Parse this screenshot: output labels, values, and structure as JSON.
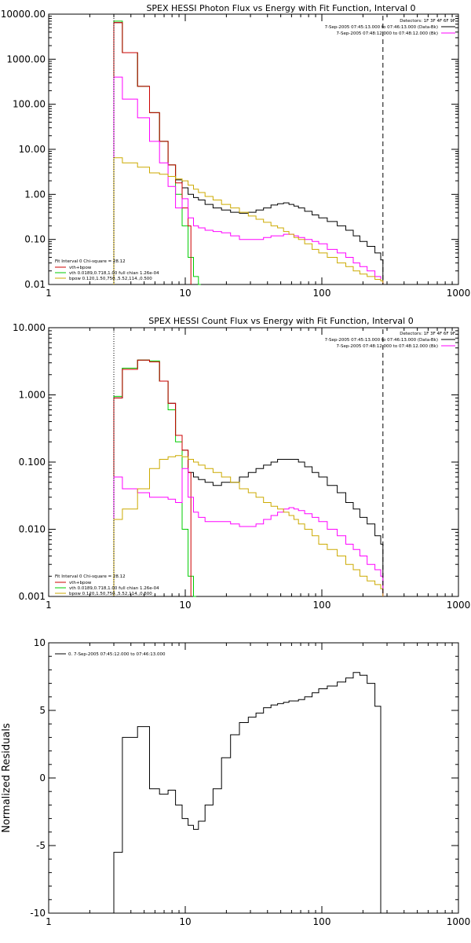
{
  "chart_data": [
    {
      "type": "line",
      "title": "SPEX HESSI Photon Flux vs Energy with Fit Function, Interval 0",
      "xlabel": "",
      "ylabel": "",
      "x_scale": "log",
      "y_scale": "log",
      "xlim": [
        1,
        1000
      ],
      "ylim": [
        0.01,
        10000
      ],
      "x_ticks": [
        1,
        10,
        100,
        1000
      ],
      "x_tick_labels": [
        "1",
        "10",
        "100",
        "1000"
      ],
      "y_ticks": [
        0.01,
        0.1,
        1,
        10,
        100,
        1000,
        10000
      ],
      "y_tick_labels": [
        "0.01",
        "0.10",
        "1.00",
        "10.00",
        "100.00",
        "1000.00",
        "10000.00"
      ],
      "legend_tr": [
        "Detectors: 1F 3F 4F 6F 9F",
        "7-Sep-2005 07:45:13.000 to 07:46:13.000 (Data-Bk)",
        "7-Sep-2005 07:48:12.000 to 07:48:12.000 (Bk)"
      ],
      "legend_bl": [
        "Fit Interval 0   Chi-square = 28.12",
        "vth+bpow",
        "vth 0.0189,0.718,1.00  full chian 1.26e-04",
        "bpow 0.120,1.50,750.,5.52,114.,0.500"
      ],
      "vlines": [
        {
          "x": 3,
          "style": "dotted"
        },
        {
          "x": 280,
          "style": "dashed"
        }
      ],
      "series": [
        {
          "color": "#000000",
          "x": [
            3,
            4,
            5,
            6,
            7,
            8,
            9,
            10,
            11,
            12,
            13,
            15,
            17,
            20,
            23,
            27,
            31,
            35,
            40,
            45,
            50,
            55,
            60,
            65,
            70,
            80,
            90,
            100,
            120,
            140,
            160,
            180,
            200,
            230,
            260,
            280
          ],
          "y": [
            6500,
            1400,
            250,
            65,
            15,
            4.5,
            2.1,
            1.4,
            1.0,
            0.85,
            0.75,
            0.6,
            0.5,
            0.45,
            0.4,
            0.38,
            0.4,
            0.45,
            0.5,
            0.58,
            0.62,
            0.65,
            0.6,
            0.55,
            0.5,
            0.42,
            0.35,
            0.3,
            0.25,
            0.2,
            0.16,
            0.12,
            0.09,
            0.07,
            0.05,
            0.035
          ]
        },
        {
          "color": "#00cc00",
          "x": [
            3,
            4,
            5,
            6,
            7,
            8,
            9,
            10,
            11,
            12,
            13
          ],
          "y": [
            7000,
            1400,
            250,
            65,
            15,
            4.5,
            1.0,
            0.2,
            0.04,
            0.015,
            0.005
          ]
        },
        {
          "color": "#cc0000",
          "x": [
            3,
            4,
            5,
            6,
            7,
            8,
            9,
            10,
            11
          ],
          "y": [
            6500,
            1400,
            250,
            65,
            15,
            4.5,
            1.8,
            0.5,
            0.2
          ]
        },
        {
          "color": "#ff00ff",
          "x": [
            3,
            4,
            5,
            6,
            7,
            8,
            9,
            10,
            11,
            12,
            13,
            15,
            17,
            20,
            23,
            27,
            31,
            35,
            40,
            45,
            50,
            55,
            60,
            65,
            70,
            80,
            90,
            100,
            120,
            140,
            160,
            180,
            200,
            230,
            260,
            280
          ],
          "y": [
            400,
            130,
            50,
            15,
            5,
            1.5,
            0.5,
            0.8,
            0.3,
            0.2,
            0.18,
            0.16,
            0.15,
            0.14,
            0.12,
            0.1,
            0.1,
            0.1,
            0.11,
            0.12,
            0.12,
            0.13,
            0.13,
            0.12,
            0.11,
            0.1,
            0.09,
            0.08,
            0.06,
            0.05,
            0.04,
            0.03,
            0.025,
            0.02,
            0.015,
            0.012
          ]
        },
        {
          "color": "#ccaa00",
          "x": [
            3,
            4,
            5,
            6,
            7,
            8,
            9,
            10,
            11,
            12,
            13,
            15,
            17,
            20,
            23,
            27,
            31,
            35,
            40,
            45,
            50,
            55,
            60,
            65,
            70,
            80,
            90,
            100,
            120,
            140,
            160,
            180,
            200,
            230,
            260,
            280
          ],
          "y": [
            6.5,
            5,
            4,
            3,
            2.8,
            2.5,
            2.2,
            2.0,
            1.6,
            1.3,
            1.1,
            0.9,
            0.75,
            0.6,
            0.5,
            0.4,
            0.33,
            0.28,
            0.24,
            0.2,
            0.18,
            0.15,
            0.13,
            0.11,
            0.1,
            0.08,
            0.06,
            0.05,
            0.04,
            0.03,
            0.025,
            0.02,
            0.017,
            0.015,
            0.013,
            0.012
          ]
        }
      ]
    },
    {
      "type": "line",
      "title": "SPEX HESSI Count Flux vs Energy with Fit Function, Interval 0",
      "xlabel": "",
      "ylabel": "",
      "x_scale": "log",
      "y_scale": "log",
      "xlim": [
        1,
        1000
      ],
      "ylim": [
        0.001,
        10
      ],
      "x_ticks": [
        1,
        10,
        100,
        1000
      ],
      "x_tick_labels": [
        "1",
        "10",
        "100",
        "1000"
      ],
      "y_ticks": [
        0.001,
        0.01,
        0.1,
        1,
        10
      ],
      "y_tick_labels": [
        "0.001",
        "0.010",
        "0.100",
        "1.000",
        "10.000"
      ],
      "legend_tr": [
        "Detectors: 1F 3F 4F 6F 9F",
        "7-Sep-2005 07:45:13.000 to 07:46:13.000 (Data-Bk)",
        "7-Sep-2005 07:48:12.000 to 07:48:12.000 (Bk)"
      ],
      "legend_bl": [
        "Fit Interval 0   Chi-square = 28.12",
        "vth+bpow",
        "vth 0.0189,0.718,1.00  full chian 1.26e-04",
        "bpow 0.120,1.50,750.,5.52,114.,0.500"
      ],
      "vlines": [
        {
          "x": 3,
          "style": "dotted"
        },
        {
          "x": 280,
          "style": "dashed"
        }
      ],
      "series": [
        {
          "color": "#000000",
          "x": [
            3,
            4,
            5,
            6,
            7,
            8,
            9,
            10,
            11,
            12,
            13,
            15,
            17,
            20,
            23,
            27,
            31,
            35,
            40,
            45,
            50,
            55,
            60,
            65,
            70,
            80,
            90,
            100,
            120,
            140,
            160,
            180,
            200,
            230,
            260,
            280
          ],
          "y": [
            0.9,
            2.5,
            3.3,
            3.1,
            1.6,
            0.75,
            0.25,
            0.15,
            0.07,
            0.06,
            0.055,
            0.05,
            0.045,
            0.05,
            0.05,
            0.06,
            0.07,
            0.08,
            0.09,
            0.1,
            0.11,
            0.11,
            0.11,
            0.11,
            0.1,
            0.085,
            0.07,
            0.06,
            0.045,
            0.035,
            0.025,
            0.02,
            0.015,
            0.012,
            0.008,
            0.006
          ]
        },
        {
          "color": "#00cc00",
          "x": [
            3,
            4,
            5,
            6,
            7,
            8,
            9,
            10,
            11,
            12
          ],
          "y": [
            0.95,
            2.5,
            3.3,
            3.2,
            1.6,
            0.6,
            0.2,
            0.01,
            0.002,
            0.0005
          ]
        },
        {
          "color": "#cc0000",
          "x": [
            3,
            4,
            5,
            6,
            7,
            8,
            9,
            10,
            11
          ],
          "y": [
            0.9,
            2.4,
            3.3,
            3.1,
            1.6,
            0.75,
            0.25,
            0.15,
            0.07
          ]
        },
        {
          "color": "#ff00ff",
          "x": [
            3,
            4,
            5,
            6,
            7,
            8,
            9,
            10,
            11,
            12,
            13,
            15,
            17,
            20,
            23,
            27,
            31,
            35,
            40,
            45,
            50,
            55,
            60,
            65,
            70,
            80,
            90,
            100,
            120,
            140,
            160,
            180,
            200,
            230,
            260,
            280
          ],
          "y": [
            0.06,
            0.04,
            0.035,
            0.03,
            0.03,
            0.028,
            0.025,
            0.08,
            0.03,
            0.018,
            0.015,
            0.013,
            0.013,
            0.013,
            0.012,
            0.011,
            0.011,
            0.012,
            0.014,
            0.016,
            0.018,
            0.02,
            0.021,
            0.02,
            0.019,
            0.017,
            0.015,
            0.013,
            0.01,
            0.008,
            0.006,
            0.005,
            0.004,
            0.003,
            0.0025,
            0.002
          ]
        },
        {
          "color": "#ccaa00",
          "x": [
            3,
            4,
            5,
            6,
            7,
            8,
            9,
            10,
            11,
            12,
            13,
            15,
            17,
            20,
            23,
            27,
            31,
            35,
            40,
            45,
            50,
            55,
            60,
            65,
            70,
            80,
            90,
            100,
            120,
            140,
            160,
            180,
            200,
            230,
            260,
            280
          ],
          "y": [
            0.014,
            0.02,
            0.04,
            0.08,
            0.11,
            0.12,
            0.125,
            0.12,
            0.11,
            0.1,
            0.09,
            0.08,
            0.07,
            0.06,
            0.05,
            0.04,
            0.035,
            0.03,
            0.025,
            0.022,
            0.02,
            0.018,
            0.016,
            0.014,
            0.012,
            0.01,
            0.008,
            0.006,
            0.005,
            0.004,
            0.003,
            0.0025,
            0.002,
            0.0017,
            0.0015,
            0.0013
          ]
        }
      ]
    },
    {
      "type": "line",
      "title": "",
      "xlabel": "",
      "ylabel": "Normalized Residuals",
      "x_scale": "log",
      "y_scale": "linear",
      "xlim": [
        1,
        1000
      ],
      "ylim": [
        -10,
        10
      ],
      "x_ticks": [
        1,
        10,
        100,
        1000
      ],
      "x_tick_labels": [
        "1",
        "10",
        "100",
        "1000"
      ],
      "y_ticks": [
        -10,
        -5,
        0,
        5,
        10
      ],
      "y_tick_labels": [
        "-10",
        "-5",
        "0",
        "5",
        "10"
      ],
      "legend_tl": [
        "0.  7-Sep-2005 07:45:12.000 to 07:46:13.000"
      ],
      "series": [
        {
          "color": "#000000",
          "x": [
            3,
            4,
            5,
            6,
            7,
            8,
            9,
            10,
            11,
            12,
            13,
            15,
            17,
            20,
            23,
            27,
            31,
            35,
            40,
            45,
            50,
            55,
            60,
            65,
            70,
            80,
            90,
            100,
            120,
            140,
            160,
            180,
            200,
            230,
            260,
            280
          ],
          "y": [
            -5.5,
            3.0,
            3.8,
            -0.8,
            -1.2,
            -0.9,
            -2.0,
            -3.0,
            -3.5,
            -3.8,
            -3.2,
            -2.0,
            -0.8,
            1.5,
            3.2,
            4.1,
            4.5,
            4.8,
            5.2,
            5.4,
            5.5,
            5.6,
            5.7,
            5.7,
            5.8,
            6.0,
            6.3,
            6.6,
            6.8,
            7.1,
            7.4,
            7.8,
            7.6,
            7.0,
            5.3,
            -10.0
          ]
        }
      ]
    }
  ]
}
